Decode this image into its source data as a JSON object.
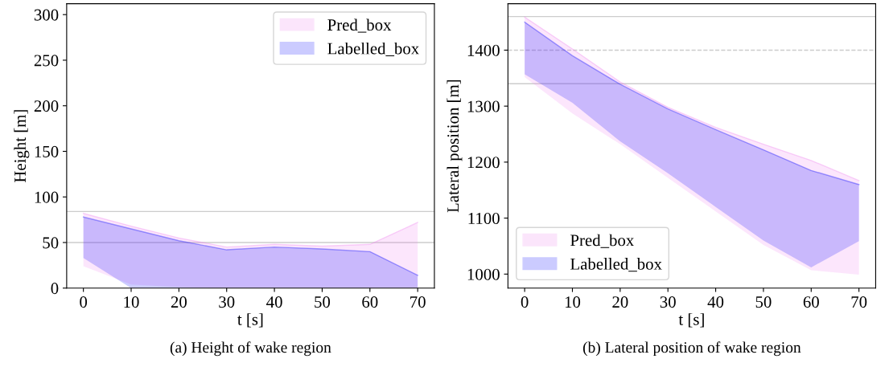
{
  "chart_data": [
    {
      "type": "line",
      "title": "(a) Height of wake region",
      "xlabel": "t [s]",
      "ylabel": "Height [m]",
      "x": [
        0,
        10,
        20,
        30,
        40,
        50,
        60,
        70
      ],
      "xlim": [
        -3.5,
        73.5
      ],
      "xticks": [
        0,
        10,
        20,
        30,
        40,
        50,
        60,
        70
      ],
      "ylim": [
        0,
        312
      ],
      "yticks": [
        0,
        50,
        100,
        150,
        200,
        250,
        300
      ],
      "series": [
        {
          "name": "Pred_box",
          "color": "#ee82ee",
          "values": [
            82,
            68,
            55,
            45,
            48,
            46,
            48,
            72
          ],
          "upper": [
            82,
            68,
            55,
            45,
            48,
            46,
            48,
            72
          ],
          "lower": [
            24,
            4,
            1,
            0,
            0,
            0,
            0,
            0
          ]
        },
        {
          "name": "Labelled_box",
          "color": "#0000ff",
          "values": [
            78,
            65,
            52,
            42,
            45,
            43,
            40,
            14
          ],
          "upper": [
            78,
            65,
            52,
            42,
            45,
            43,
            40,
            14
          ],
          "lower": [
            33,
            0,
            0,
            0,
            0,
            0,
            0,
            0
          ]
        }
      ],
      "ref_lines": [
        {
          "axis": "y",
          "value": 84,
          "color": "#cccccc",
          "line_style": "solid"
        },
        {
          "axis": "y",
          "value": 50,
          "color": "#cccccc",
          "line_style": "solid"
        }
      ],
      "legend": "top right",
      "grid": false
    },
    {
      "type": "line",
      "title": "(b) Lateral position of wake region",
      "xlabel": "t [s]",
      "ylabel": "Lateral position [m]",
      "x": [
        0,
        10,
        20,
        30,
        40,
        50,
        60,
        70
      ],
      "xlim": [
        -3.5,
        73.5
      ],
      "xticks": [
        0,
        10,
        20,
        30,
        40,
        50,
        60,
        70
      ],
      "ylim": [
        975,
        1483
      ],
      "yticks": [
        1000,
        1100,
        1200,
        1300,
        1400
      ],
      "series": [
        {
          "name": "Pred_box",
          "color": "#ee82ee",
          "values": [
            1459,
            1402,
            1343,
            1298,
            1262,
            1232,
            1203,
            1167
          ],
          "upper": [
            1459,
            1402,
            1343,
            1298,
            1262,
            1232,
            1203,
            1167
          ],
          "lower": [
            1352,
            1287,
            1232,
            1172,
            1112,
            1052,
            1007,
            999
          ]
        },
        {
          "name": "Labelled_box",
          "color": "#0000ff",
          "values": [
            1450,
            1390,
            1339,
            1295,
            1258,
            1222,
            1185,
            1160
          ],
          "upper": [
            1450,
            1390,
            1339,
            1295,
            1258,
            1222,
            1185,
            1160
          ],
          "lower": [
            1357,
            1306,
            1237,
            1180,
            1120,
            1060,
            1012,
            1059
          ]
        }
      ],
      "ref_lines": [
        {
          "axis": "y",
          "value": 1460,
          "color": "#cccccc",
          "line_style": "solid"
        },
        {
          "axis": "y",
          "value": 1400,
          "color": "#cccccc",
          "line_style": "dashed"
        },
        {
          "axis": "y",
          "value": 1340,
          "color": "#cccccc",
          "line_style": "solid"
        }
      ],
      "legend": "bottom left",
      "grid": false
    }
  ]
}
